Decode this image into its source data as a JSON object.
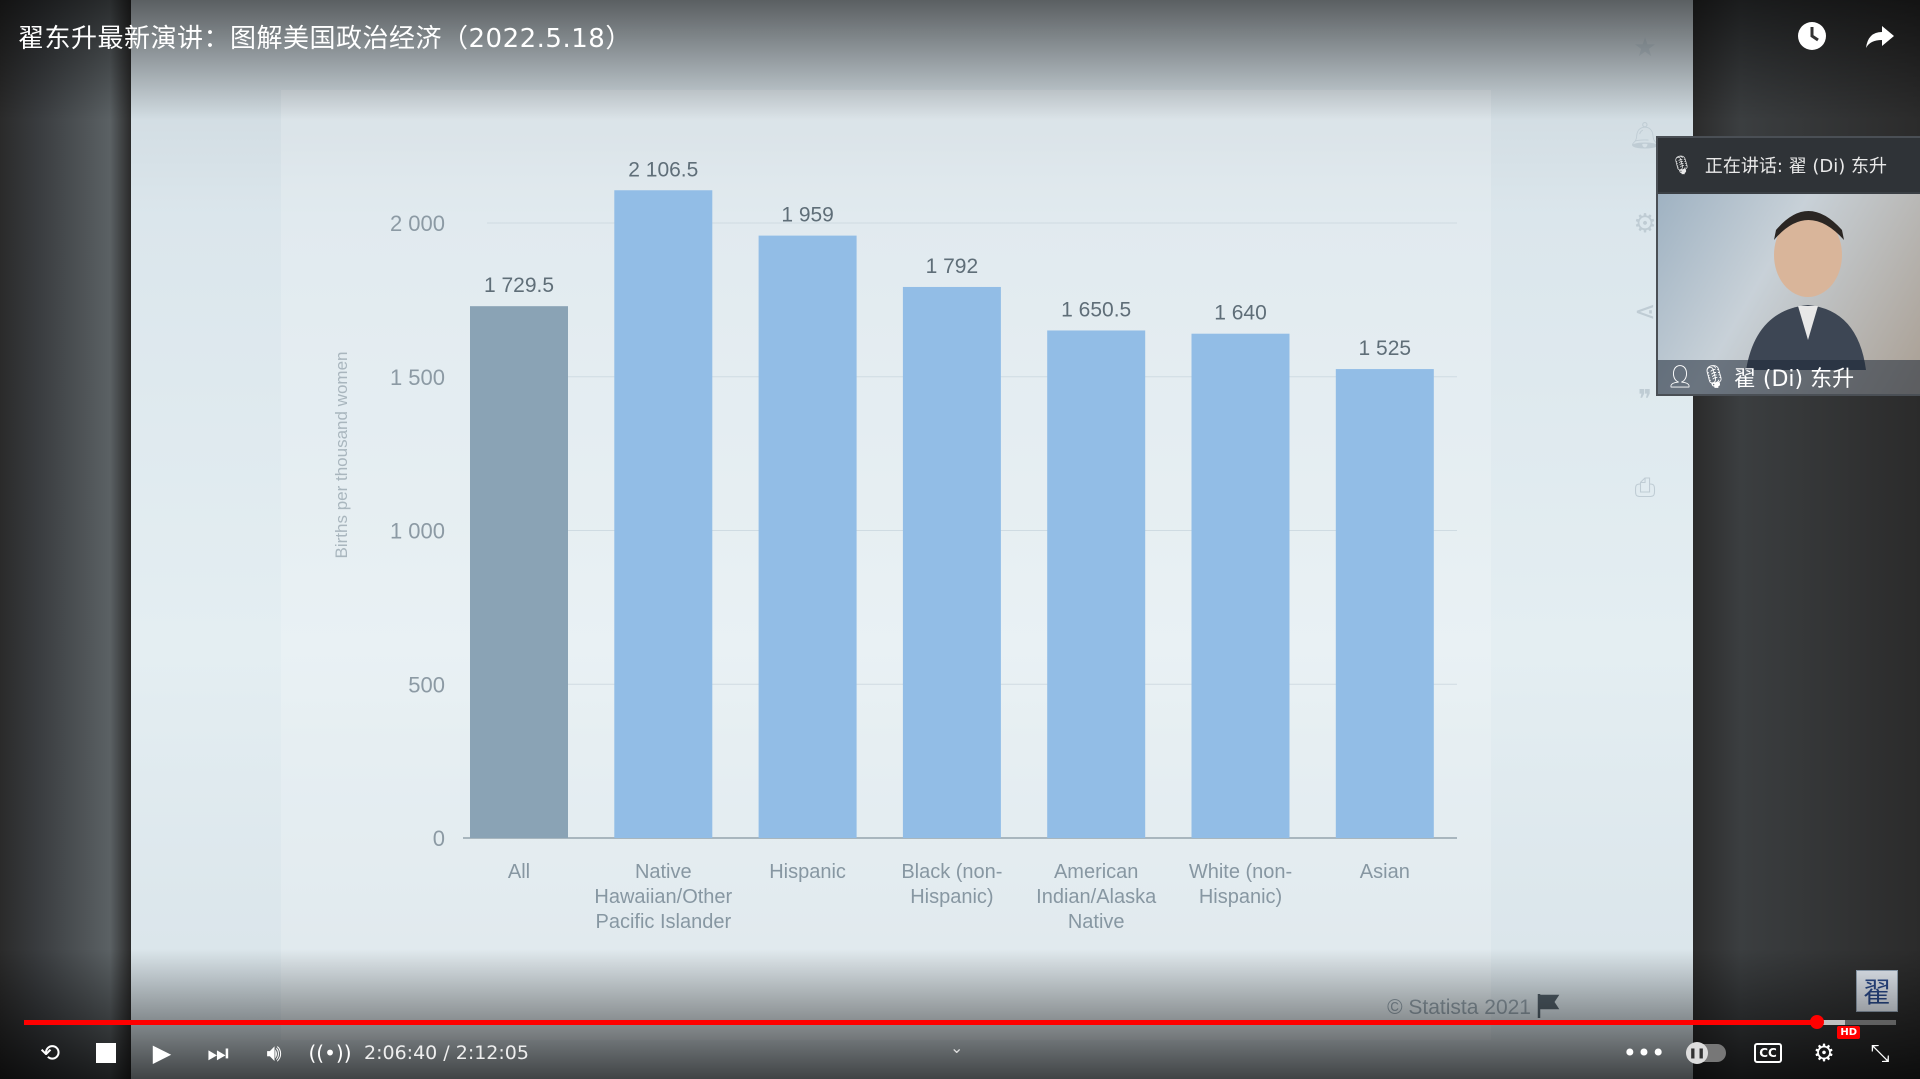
{
  "video": {
    "title": "翟东升最新演讲：图解美国政治经济（2022.5.18）"
  },
  "chart_data": {
    "type": "bar",
    "categories": [
      "All",
      "Native Hawaiian/Other Pacific Islander",
      "Hispanic",
      "Black (non-Hispanic)",
      "American Indian/Alaska Native",
      "White (non-Hispanic)",
      "Asian"
    ],
    "category_lines": [
      [
        "All"
      ],
      [
        "Native",
        "Hawaiian/Other",
        "Pacific Islander"
      ],
      [
        "Hispanic"
      ],
      [
        "Black (non-",
        "Hispanic)"
      ],
      [
        "American",
        "Indian/Alaska",
        "Native"
      ],
      [
        "White (non-",
        "Hispanic)"
      ],
      [
        "Asian"
      ]
    ],
    "values": [
      1729.5,
      2106.5,
      1959,
      1792,
      1650.5,
      1640,
      1525
    ],
    "value_labels": [
      "1 729.5",
      "2 106.5",
      "1 959",
      "1 792",
      "1 650.5",
      "1 640",
      "1 525"
    ],
    "ylabel": "Births per thousand women",
    "ylim": [
      0,
      2200
    ],
    "yticks": [
      0,
      500,
      1000,
      1500,
      2000
    ],
    "ytick_labels": [
      "0",
      "500",
      "1 000",
      "1 500",
      "2 000"
    ],
    "grid": true,
    "colors": {
      "highlight": "#8aa3b5",
      "bar": "#92bde6"
    },
    "credit": "© Statista 2021"
  },
  "side_icons": [
    "star-icon",
    "bell-icon",
    "gear-icon",
    "share-icon",
    "quote-icon",
    "print-icon"
  ],
  "pip": {
    "header": "正在讲话: 翟 (Di) 东升",
    "name": "翟 (Di) 东升"
  },
  "watermark": "翟",
  "player": {
    "time": "2:06:40 / 2:12:05",
    "played_fraction": 0.958,
    "buffered_fraction": 0.973,
    "cc_label": "CC",
    "hd_label": "HD"
  }
}
